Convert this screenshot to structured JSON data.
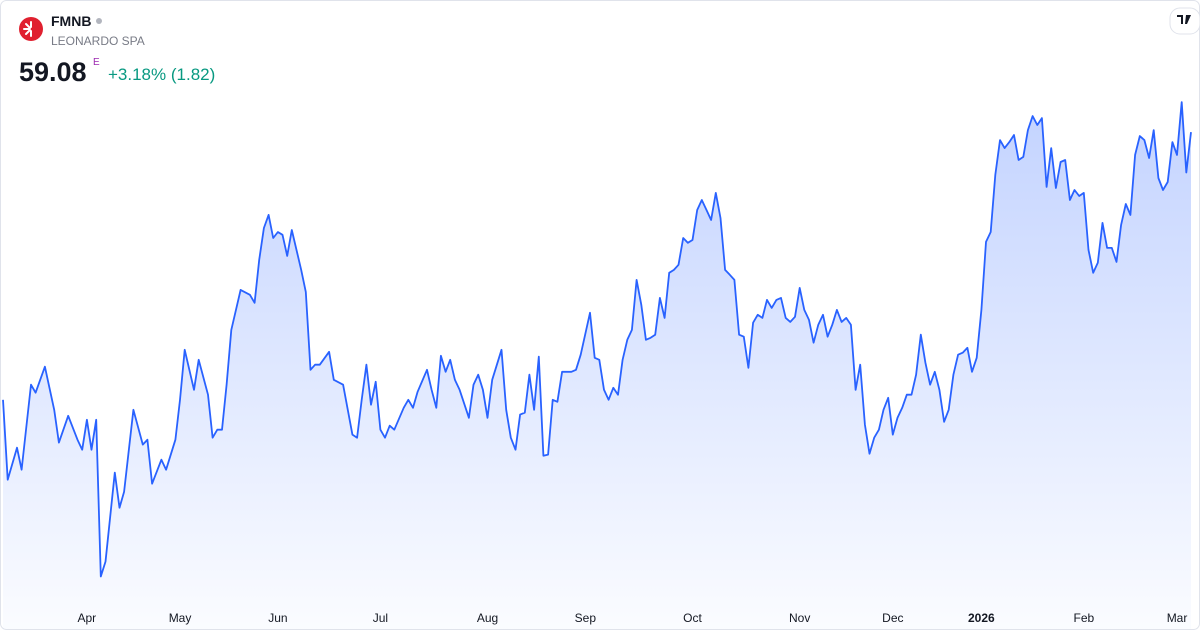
{
  "header": {
    "symbol": "FMNB",
    "name": "LEONARDO SPA",
    "price": 59.08,
    "price_flag": "E",
    "change": "+3.18% (1.82)"
  },
  "chart_data": {
    "type": "area",
    "color": "#2962ff",
    "x": [
      0,
      1,
      3,
      4,
      6,
      7,
      9,
      11,
      12,
      14,
      16,
      17,
      18,
      19,
      20,
      21,
      22,
      24,
      25,
      26,
      28,
      30,
      31,
      32,
      34,
      35,
      37,
      38,
      39,
      41,
      42,
      44,
      45,
      46,
      47,
      48,
      49,
      51,
      53,
      54,
      55,
      56,
      57,
      58,
      59,
      60,
      61,
      62,
      64,
      65,
      66,
      67,
      68,
      70,
      71,
      73,
      75,
      76,
      77,
      78,
      79,
      80,
      81,
      82,
      83,
      84,
      86,
      87,
      88,
      89,
      91,
      92,
      93,
      94,
      95,
      96,
      97,
      98,
      100,
      101,
      102,
      103,
      104,
      105,
      107,
      108,
      109,
      110,
      111,
      112,
      113,
      114,
      115,
      116,
      117,
      118,
      119,
      120,
      122,
      123,
      124,
      126,
      127,
      128,
      129,
      130,
      131,
      132,
      133,
      134,
      135,
      136,
      137,
      138,
      139,
      140,
      141,
      142,
      143,
      144,
      145,
      146,
      147,
      148,
      149,
      150,
      151,
      152,
      153,
      154,
      155,
      156,
      157,
      158,
      159,
      160,
      161,
      162,
      163,
      164,
      165,
      166,
      167,
      168,
      169,
      170,
      171,
      172,
      173,
      174,
      175,
      176,
      177,
      178,
      179,
      180,
      181,
      182,
      183,
      184,
      185,
      186,
      187,
      188,
      189,
      190,
      191,
      192,
      193,
      194,
      195,
      196,
      197,
      198,
      199,
      200,
      201,
      202,
      203,
      204,
      205,
      206,
      207,
      208,
      209,
      210,
      211,
      212,
      213,
      214,
      215,
      216,
      217,
      218,
      219,
      220,
      221,
      222,
      223,
      224,
      225,
      226,
      227,
      228,
      229,
      230,
      231,
      232,
      233,
      234,
      235,
      236,
      237,
      238,
      239,
      240,
      241,
      242,
      243,
      244,
      245,
      246,
      247,
      248,
      249,
      250,
      251,
      252,
      253,
      254,
      255
    ],
    "values": [
      47.02,
      43.42,
      44.86,
      43.87,
      47.7,
      47.34,
      48.51,
      46.57,
      45.09,
      46.3,
      45.22,
      44.77,
      46.12,
      44.77,
      46.12,
      39.06,
      39.73,
      43.74,
      42.16,
      42.88,
      46.57,
      45.0,
      45.22,
      43.24,
      44.32,
      43.87,
      45.22,
      47.02,
      49.27,
      47.47,
      48.82,
      47.25,
      45.31,
      45.67,
      45.67,
      47.7,
      50.17,
      51.97,
      51.75,
      51.39,
      53.32,
      54.76,
      55.35,
      54.31,
      54.58,
      54.45,
      53.5,
      54.67,
      52.87,
      51.88,
      48.37,
      48.6,
      48.6,
      49.18,
      47.92,
      47.7,
      45.45,
      45.31,
      47.02,
      48.6,
      46.8,
      47.83,
      45.67,
      45.31,
      45.85,
      45.67,
      46.66,
      47.02,
      46.66,
      47.38,
      48.37,
      47.47,
      46.66,
      49.0,
      48.28,
      48.82,
      47.92,
      47.47,
      46.21,
      47.7,
      48.15,
      47.47,
      46.21,
      47.92,
      49.27,
      46.57,
      45.31,
      44.77,
      46.35,
      46.44,
      48.15,
      46.57,
      48.96,
      44.5,
      44.55,
      47.02,
      46.93,
      48.28,
      48.28,
      48.37,
      49.05,
      50.94,
      48.91,
      48.82,
      47.47,
      47.02,
      47.56,
      47.25,
      48.82,
      49.72,
      50.17,
      52.42,
      51.3,
      49.72,
      49.81,
      49.95,
      51.61,
      50.71,
      52.74,
      52.87,
      53.1,
      54.31,
      54.09,
      54.22,
      55.57,
      56.02,
      55.57,
      55.12,
      56.34,
      55.21,
      52.87,
      52.65,
      52.42,
      49.95,
      49.86,
      48.46,
      50.49,
      50.85,
      50.71,
      51.52,
      51.16,
      51.52,
      51.61,
      50.71,
      50.53,
      50.76,
      52.06,
      51.07,
      50.62,
      49.59,
      50.4,
      50.85,
      49.86,
      50.4,
      51.07,
      50.53,
      50.71,
      50.4,
      47.47,
      48.6,
      45.9,
      44.59,
      45.31,
      45.67,
      46.57,
      47.11,
      45.45,
      46.21,
      46.66,
      47.25,
      47.25,
      48.15,
      49.95,
      48.69,
      47.7,
      48.28,
      47.47,
      46.03,
      46.57,
      48.15,
      49.05,
      49.14,
      49.36,
      48.28,
      48.91,
      51.07,
      54.13,
      54.58,
      57.15,
      58.72,
      58.36,
      58.63,
      58.95,
      57.82,
      57.96,
      59.17,
      59.8,
      59.4,
      59.71,
      56.61,
      58.36,
      56.56,
      57.73,
      57.82,
      56.02,
      56.47,
      56.2,
      56.34,
      53.77,
      52.74,
      53.19,
      54.99,
      53.86,
      53.86,
      53.23,
      54.9,
      55.84,
      55.35,
      58.05,
      58.9,
      58.72,
      57.91,
      59.17,
      57.01,
      56.47,
      56.83,
      58.63,
      58.05,
      60.43,
      57.26,
      59.08
    ],
    "xlim": [
      0,
      255
    ],
    "ylim": [
      38,
      60.75
    ],
    "xticks": [
      {
        "value": 18,
        "label": "Apr"
      },
      {
        "value": 38,
        "label": "May"
      },
      {
        "value": 59,
        "label": "Jun"
      },
      {
        "value": 81,
        "label": "Jul"
      },
      {
        "value": 104,
        "label": "Aug"
      },
      {
        "value": 125,
        "label": "Sep"
      },
      {
        "value": 148,
        "label": "Oct"
      },
      {
        "value": 171,
        "label": "Nov"
      },
      {
        "value": 191,
        "label": "Dec"
      },
      {
        "value": 210,
        "label": "2026"
      },
      {
        "value": 232,
        "label": "Feb"
      },
      {
        "value": 252,
        "label": "Mar"
      }
    ]
  }
}
